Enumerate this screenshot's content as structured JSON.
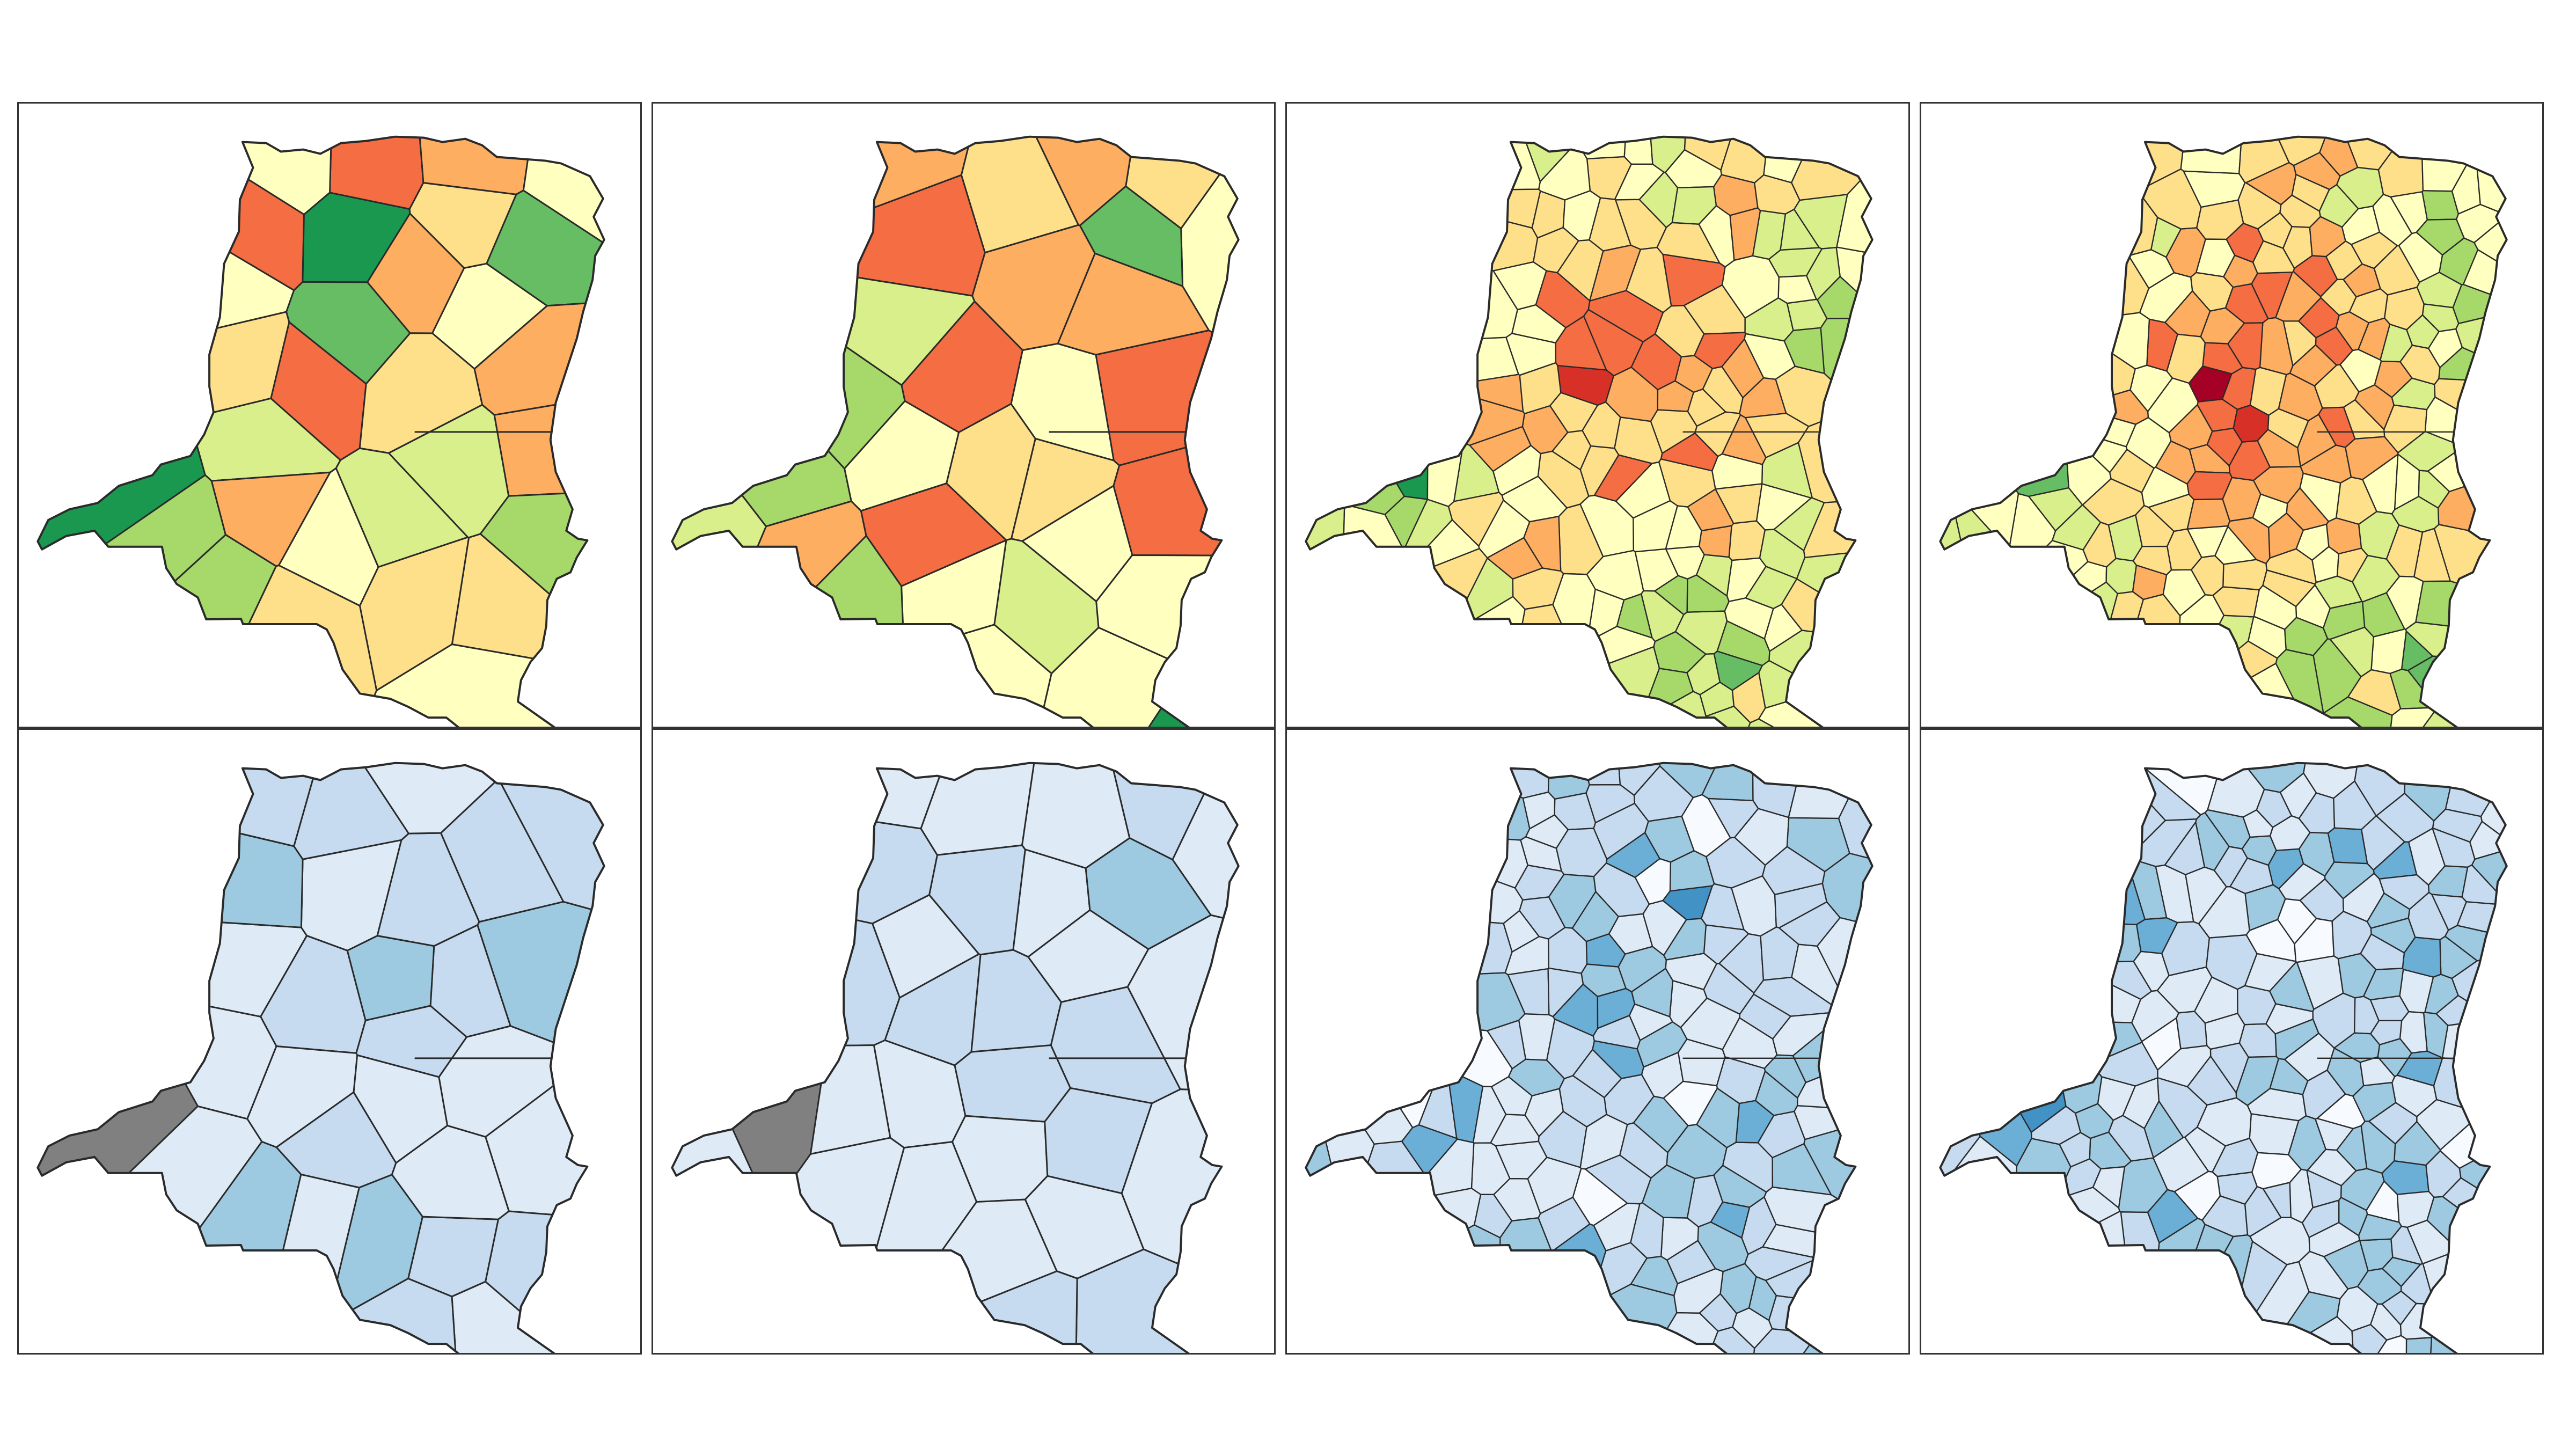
{
  "figure": {
    "rows": 2,
    "cols": 4,
    "frame_color": "#333333",
    "outline_color": "#2a2a2a",
    "missing_color": "#808080"
  },
  "palettes": {
    "diverging": [
      "#006837",
      "#1a9850",
      "#66bd63",
      "#a6d96a",
      "#d9ef8b",
      "#ffffbf",
      "#fee08b",
      "#fdae61",
      "#f46d43",
      "#d73027",
      "#a50026"
    ],
    "sequential": [
      "#f7fbff",
      "#deebf7",
      "#c6dbef",
      "#9ecae1",
      "#6baed6",
      "#4292c6",
      "#2171b5"
    ]
  },
  "panels": [
    {
      "id": "top-1",
      "palette": "diverging",
      "districts": 26,
      "seed": 11,
      "levels": [
        5,
        6,
        5,
        4,
        6,
        7,
        8,
        6,
        2,
        3,
        5,
        6,
        7,
        4,
        8,
        7,
        5,
        3,
        4,
        6,
        2,
        1,
        3,
        7,
        6,
        5
      ],
      "anchor_levels": [
        1,
        7,
        8,
        5
      ]
    },
    {
      "id": "top-2",
      "palette": "diverging",
      "districts": 26,
      "seed": 23,
      "levels": [
        6,
        7,
        5,
        5,
        7,
        8,
        8,
        5,
        3,
        4,
        6,
        5,
        7,
        4,
        8,
        6,
        5,
        4,
        5,
        7,
        3,
        1,
        2,
        8,
        5,
        6
      ],
      "anchor_levels": [
        3,
        7,
        8,
        5
      ]
    },
    {
      "id": "top-3",
      "palette": "diverging",
      "districts": 150,
      "seed": 37,
      "levels": [],
      "anchor_levels": [
        1,
        8,
        9,
        6
      ]
    },
    {
      "id": "top-4",
      "palette": "diverging",
      "districts": 190,
      "seed": 53,
      "levels": [],
      "anchor_levels": [
        2,
        8,
        10,
        6
      ]
    },
    {
      "id": "bottom-1",
      "palette": "sequential",
      "districts": 26,
      "seed": 61,
      "levels": [
        1,
        2,
        1,
        3,
        2,
        1,
        2,
        3,
        1,
        2,
        2,
        1,
        3,
        2,
        1,
        1,
        2,
        3,
        1,
        2,
        1,
        2,
        3,
        1,
        2,
        1
      ],
      "anchor_levels": [
        -1,
        2,
        2,
        1
      ]
    },
    {
      "id": "bottom-2",
      "palette": "sequential",
      "districts": 26,
      "seed": 71,
      "levels": [
        1,
        1,
        2,
        1,
        2,
        1,
        1,
        2,
        1,
        2,
        1,
        1,
        3,
        1,
        2,
        1,
        1,
        2,
        1,
        2,
        1,
        2,
        1,
        2,
        1,
        1
      ],
      "anchor_levels": [
        -1,
        1,
        2,
        2
      ]
    },
    {
      "id": "bottom-3",
      "palette": "sequential",
      "districts": 150,
      "seed": 83,
      "levels": [],
      "anchor_levels": [
        0,
        5,
        4,
        1
      ]
    },
    {
      "id": "bottom-4",
      "palette": "sequential",
      "districts": 190,
      "seed": 97,
      "levels": [],
      "anchor_levels": [
        5,
        2,
        1,
        1
      ]
    }
  ]
}
